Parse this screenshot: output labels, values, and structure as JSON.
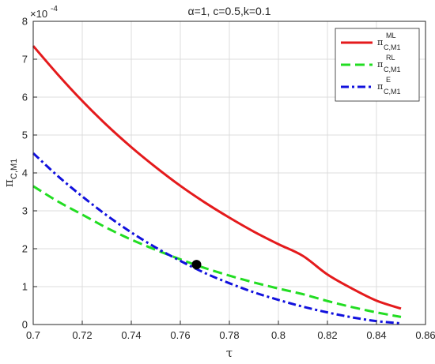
{
  "chart_data": {
    "type": "line",
    "title": "α=1, c=0.5,k=0.1",
    "xlabel": "τ",
    "ylabel": {
      "base": "π",
      "sub": "C,M1"
    },
    "y_exponent_label": "×10",
    "y_exponent": "-4",
    "xlim": [
      0.7,
      0.86
    ],
    "ylim": [
      0,
      8
    ],
    "x_scale_unit": 1,
    "y_scale_unit": 0.0001,
    "xticks": [
      "0.7",
      "0.72",
      "0.74",
      "0.76",
      "0.78",
      "0.8",
      "0.82",
      "0.84",
      "0.86"
    ],
    "yticks": [
      "0",
      "1",
      "2",
      "3",
      "4",
      "5",
      "6",
      "7",
      "8"
    ],
    "grid": true,
    "legend_position": "top-right",
    "x": [
      0.7,
      0.71,
      0.72,
      0.73,
      0.74,
      0.75,
      0.76,
      0.77,
      0.78,
      0.79,
      0.8,
      0.81,
      0.82,
      0.83,
      0.84,
      0.85
    ],
    "series": [
      {
        "name": {
          "base": "π",
          "sup": "ML",
          "sub": "C,M1"
        },
        "color": "#e41a1c",
        "style": "solid",
        "values": [
          7.35,
          6.6,
          5.9,
          5.26,
          4.68,
          4.15,
          3.66,
          3.22,
          2.82,
          2.45,
          2.12,
          1.81,
          1.32,
          0.95,
          0.63,
          0.42
        ]
      },
      {
        "name": {
          "base": "π",
          "sup": "RL",
          "sub": "C,M1"
        },
        "color": "#22dd22",
        "style": "dashed",
        "values": [
          3.65,
          3.25,
          2.9,
          2.55,
          2.24,
          1.97,
          1.72,
          1.49,
          1.29,
          1.11,
          0.95,
          0.8,
          0.62,
          0.46,
          0.32,
          0.2
        ]
      },
      {
        "name": {
          "base": "π",
          "sup": "E",
          "sub": "C,M1"
        },
        "color": "#1111dd",
        "style": "dashdot",
        "values": [
          4.52,
          3.92,
          3.38,
          2.88,
          2.43,
          2.03,
          1.68,
          1.36,
          1.09,
          0.85,
          0.65,
          0.47,
          0.32,
          0.19,
          0.09,
          0.03
        ]
      }
    ],
    "annotation_point": {
      "x": 0.7666,
      "y": 1.58,
      "color": "#000000"
    }
  }
}
